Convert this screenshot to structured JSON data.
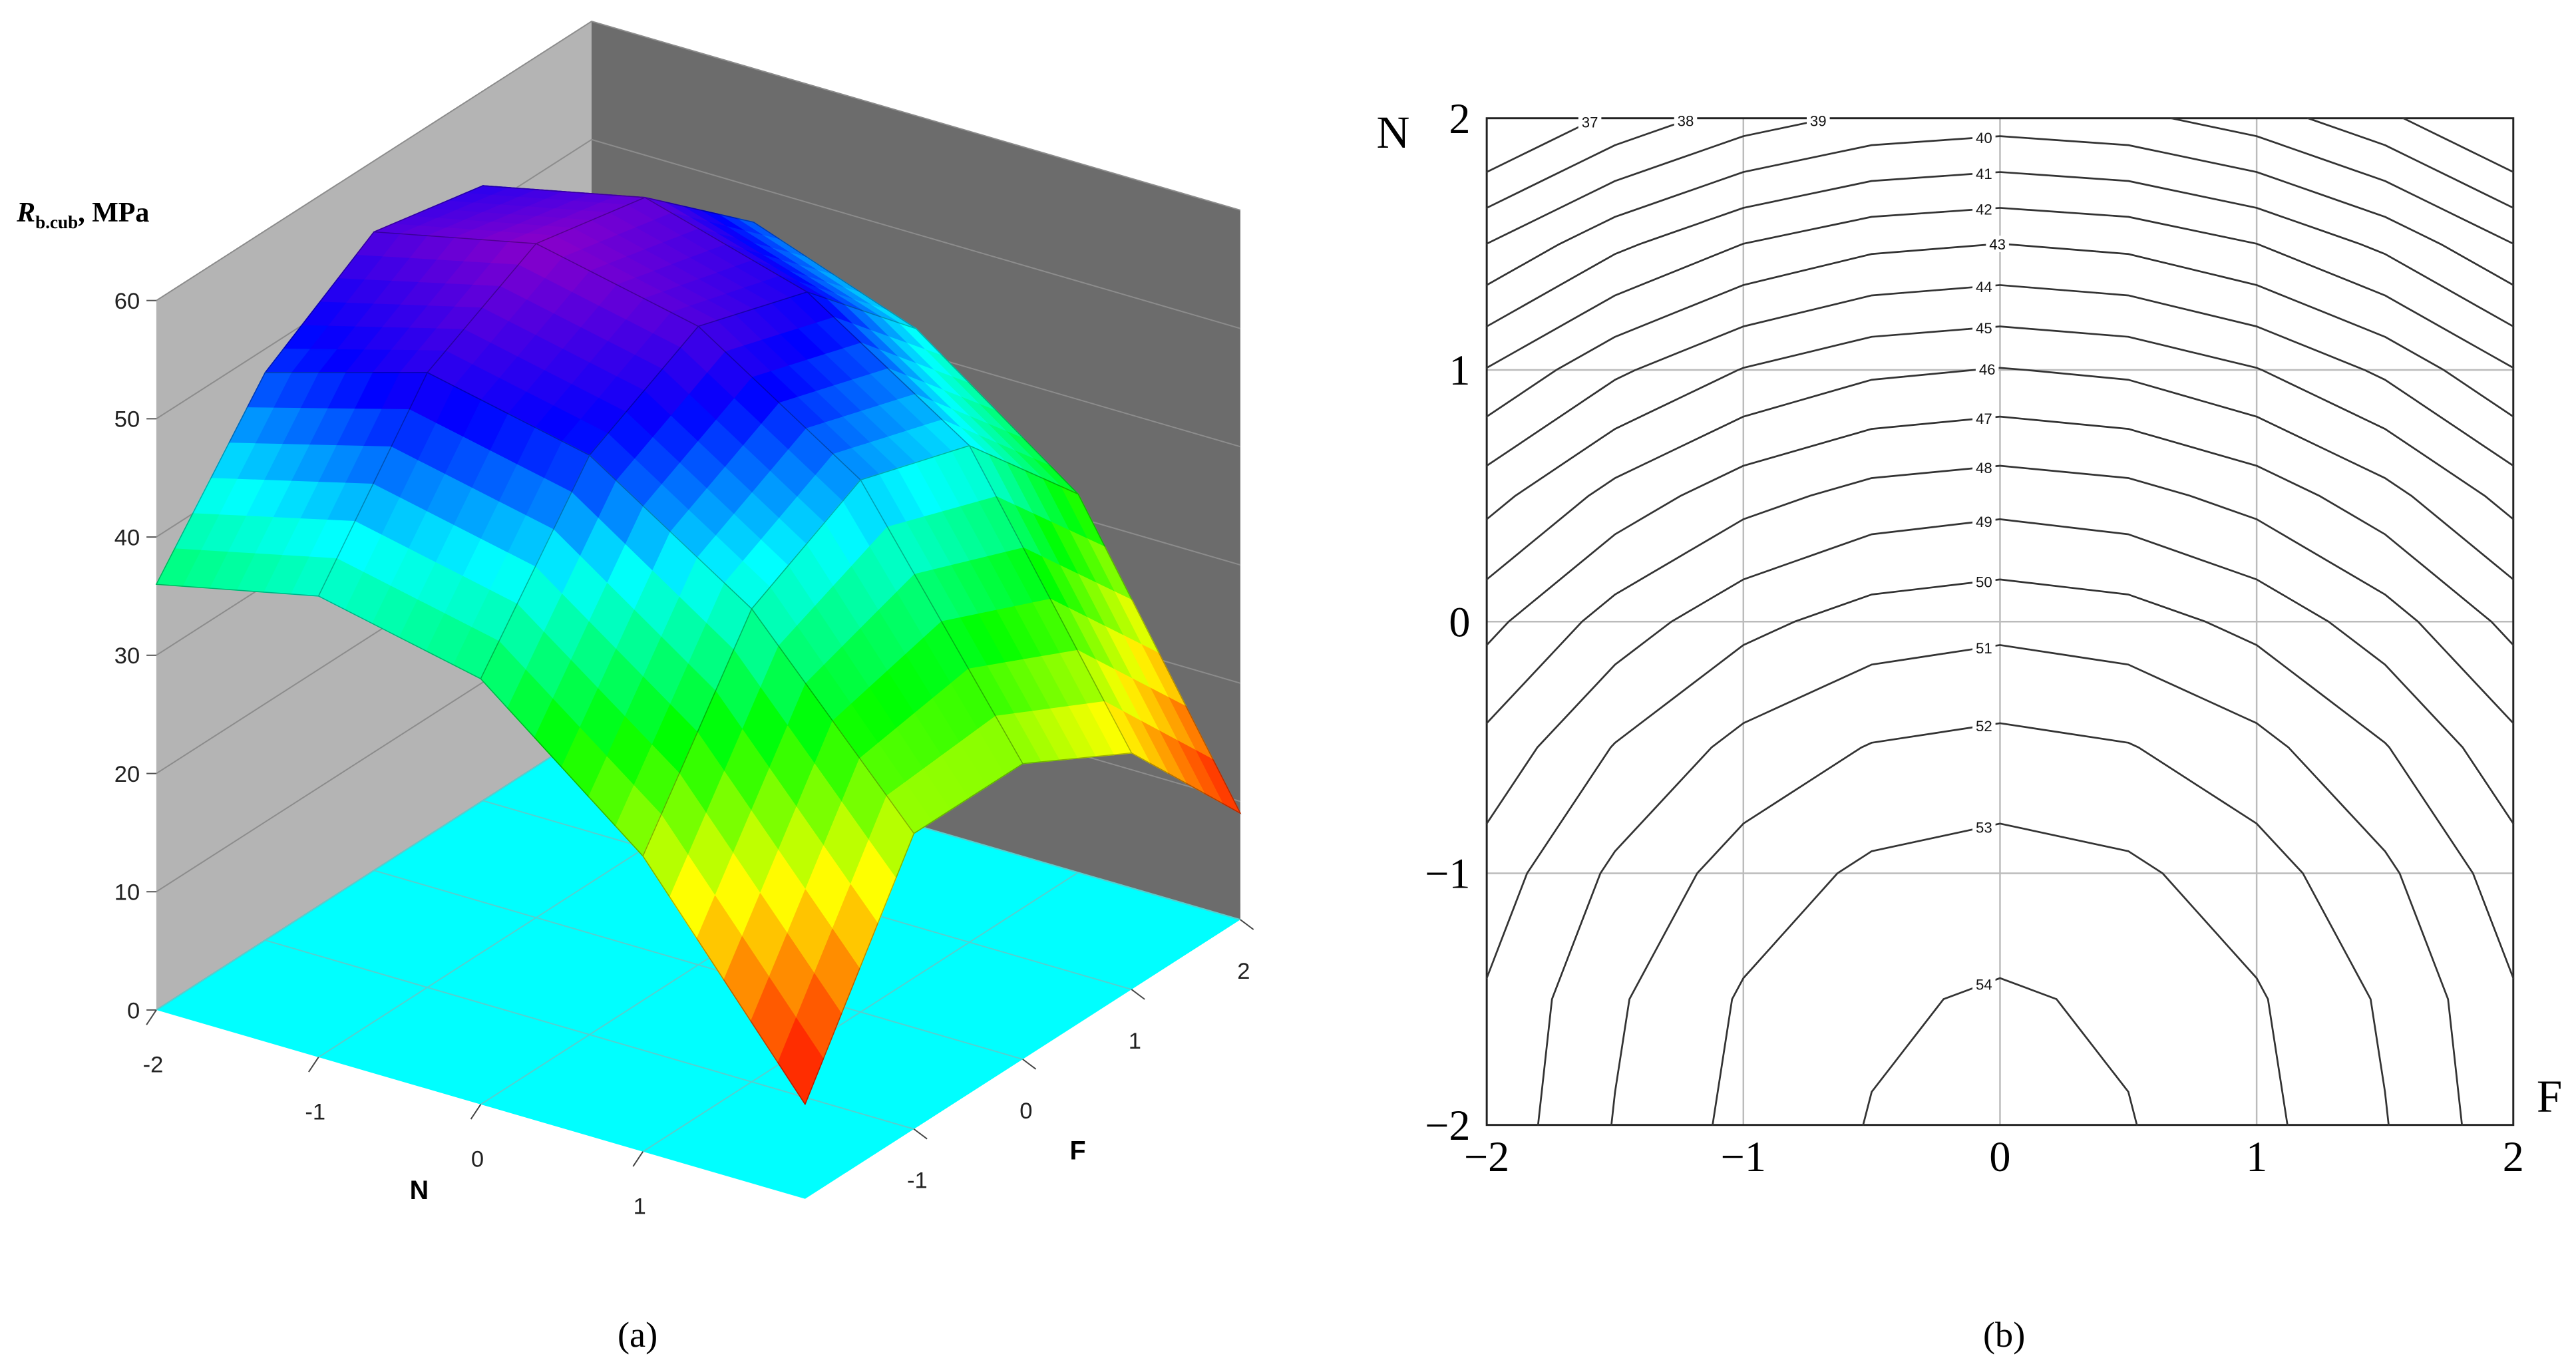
{
  "chart_data": [
    {
      "type": "surface",
      "panel_label": "(a)",
      "z_label": {
        "symbol": "R",
        "subscript": "b.cub",
        "unit": ", MPa"
      },
      "x_label": "N",
      "y_label": "F",
      "x": [
        -2,
        -1,
        0,
        1,
        2
      ],
      "y": [
        -2,
        -1,
        0,
        1,
        2
      ],
      "z": [
        [
          36,
          48,
          54,
          52,
          45
        ],
        [
          39,
          52,
          57,
          55,
          47
        ],
        [
          36,
          49,
          54,
          51,
          42
        ],
        [
          25,
          40,
          45,
          42,
          32
        ],
        [
          8,
          25,
          25,
          20,
          9
        ]
      ],
      "xlim": [
        -2,
        2
      ],
      "xticks": [
        -2,
        -1,
        0,
        1
      ],
      "ylim": [
        -2,
        2
      ],
      "yticks": [
        -1,
        0,
        1,
        2
      ],
      "zlim": [
        0,
        60
      ],
      "zticks": [
        0,
        10,
        20,
        30,
        40,
        50,
        60
      ],
      "colorscale": [
        [
          8,
          "#ff0000"
        ],
        [
          15,
          "#ff7000"
        ],
        [
          22,
          "#ffff00"
        ],
        [
          32,
          "#00ff00"
        ],
        [
          42,
          "#00ffff"
        ],
        [
          50,
          "#0000ff"
        ],
        [
          58,
          "#a000c0"
        ]
      ],
      "floor_color": "#00ffff",
      "wall_colors": [
        "#b4b4b4",
        "#6c6c6c"
      ]
    },
    {
      "type": "contour",
      "panel_label": "(b)",
      "x_label": "F",
      "y_label": "N",
      "x": [
        -2,
        -1.5,
        -1,
        -0.5,
        0,
        0.5,
        1,
        1.5,
        2
      ],
      "y": [
        -2,
        -1.5,
        -1,
        -0.5,
        0,
        0.5,
        1,
        1.5,
        2
      ],
      "z": [
        [
          50.3,
          52.05,
          53.3,
          54.05,
          54.3,
          54.05,
          53.3,
          52.05,
          50.3
        ],
        [
          50.11,
          51.86,
          53.11,
          53.86,
          54.11,
          53.86,
          53.11,
          51.86,
          50.11
        ],
        [
          49.45,
          51.2,
          52.45,
          53.2,
          53.45,
          53.2,
          52.45,
          51.2,
          49.45
        ],
        [
          48.31,
          50.06,
          51.31,
          52.06,
          52.31,
          52.06,
          51.31,
          50.06,
          48.31
        ],
        [
          46.7,
          48.45,
          49.7,
          50.45,
          50.7,
          50.45,
          49.7,
          48.45,
          46.7
        ],
        [
          44.61,
          46.36,
          47.61,
          48.36,
          48.61,
          48.36,
          47.61,
          46.36,
          44.61
        ],
        [
          42.05,
          43.8,
          45.05,
          45.8,
          46.05,
          45.8,
          45.05,
          43.8,
          42.05
        ],
        [
          39.01,
          40.76,
          42.01,
          42.76,
          43.01,
          42.76,
          42.01,
          40.76,
          39.01
        ],
        [
          35.5,
          37.25,
          38.5,
          39.25,
          39.5,
          39.25,
          38.5,
          37.25,
          35.5
        ]
      ],
      "levels": [
        37,
        38,
        39,
        40,
        41,
        42,
        43,
        44,
        45,
        46,
        47,
        48,
        49,
        50,
        51,
        52,
        53,
        54
      ],
      "xlim": [
        -2,
        2
      ],
      "xticks": [
        {
          "value": -2,
          "label": "−2"
        },
        {
          "value": -1,
          "label": "−1"
        },
        0,
        1,
        2
      ],
      "ylim": [
        -2,
        2
      ],
      "yticks": [
        {
          "value": -2,
          "label": "−2"
        },
        {
          "value": -1,
          "label": "−1"
        },
        0,
        1,
        2
      ],
      "grid": true,
      "line_color": "#333333"
    }
  ]
}
